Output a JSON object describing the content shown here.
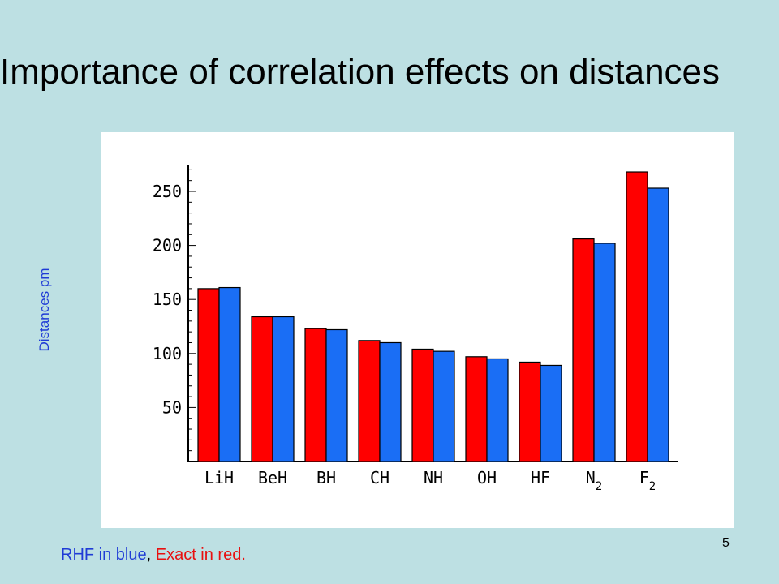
{
  "slide": {
    "title": "Importance of correlation effects on distances",
    "ylabel": "Distances pm",
    "caption": {
      "part1": "RHF in blue",
      "sep": ", ",
      "part2": "Exact in red."
    },
    "page_number": "5"
  },
  "colors": {
    "exact": "#ff0000",
    "rhf": "#1a6ef5",
    "background": "#bde0e3"
  },
  "chart_data": {
    "type": "bar",
    "categories": [
      "LiH",
      "BeH",
      "BH",
      "CH",
      "NH",
      "OH",
      "HF",
      "N2",
      "F2"
    ],
    "series": [
      {
        "values": [
          160,
          134,
          123,
          112,
          104,
          97,
          92,
          206,
          268
        ]
      },
      {
        "values": [
          161,
          134,
          122,
          110,
          102,
          95,
          89,
          202,
          253
        ]
      }
    ],
    "yticks": [
      50,
      100,
      150,
      200,
      250
    ],
    "ylim": [
      0,
      275
    ],
    "grid": false
  }
}
